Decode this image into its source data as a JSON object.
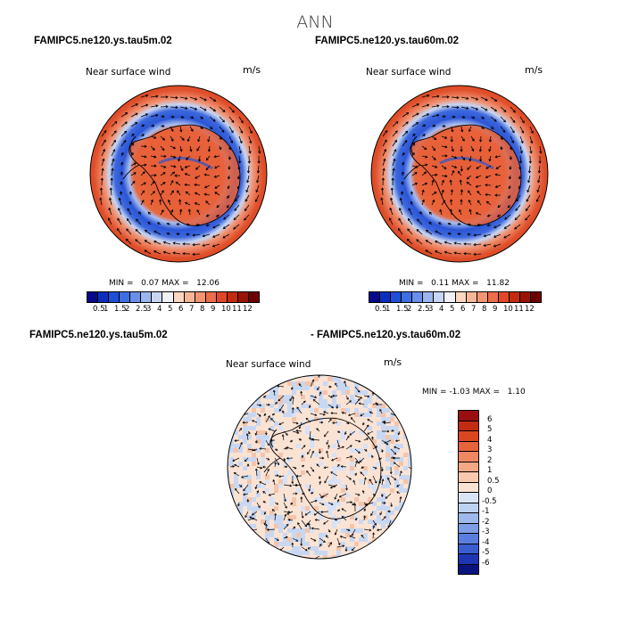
{
  "figure": {
    "title": "ANN"
  },
  "panels": [
    {
      "title": "FAMIPC5.ne120.ys.tau5m.02",
      "field": "Near surface wind",
      "units": "m/s",
      "min_label": "MIN =",
      "min": "0.07",
      "max_label": "MAX =",
      "max": "12.06"
    },
    {
      "title": "FAMIPC5.ne120.ys.tau60m.02",
      "field": "Near surface wind",
      "units": "m/s",
      "min_label": "MIN =",
      "min": "0.11",
      "max_label": "MAX =",
      "max": "11.82"
    },
    {
      "title": "FAMIPC5.ne120.ys.tau5m.02",
      "title2": "- FAMIPC5.ne120.ys.tau60m.02",
      "field": "Near surface wind",
      "units": "m/s",
      "min_label": "MIN =",
      "min": "-1.03",
      "max_label": "MAX =",
      "max": "1.10"
    }
  ],
  "colorbar_abs": {
    "labels": [
      "0.5",
      "1",
      "1.5",
      "2",
      "2.5",
      "3",
      "4",
      "5",
      "6",
      "7",
      "8",
      "9",
      "10",
      "11",
      "12"
    ],
    "colors": [
      "#08088a",
      "#0b2fbd",
      "#1f4fd8",
      "#3d6ee3",
      "#6a8fe8",
      "#9bb5ee",
      "#c8d6f3",
      "#f1f1f5",
      "#fbd7c0",
      "#f8b699",
      "#f39473",
      "#ed6d4b",
      "#e34826",
      "#c42a10",
      "#9a1405",
      "#6e0000"
    ]
  },
  "colorbar_diff": {
    "labels": [
      "6",
      "5",
      "4",
      "3",
      "2",
      "1",
      "0.5",
      "0",
      "-0.5",
      "-1",
      "-2",
      "-3",
      "-4",
      "-5",
      "-6"
    ],
    "colors": [
      "#990f0f",
      "#c32b12",
      "#d94721",
      "#e5643c",
      "#ee8762",
      "#f4a986",
      "#f8c9ad",
      "#fbe3d4",
      "#d9e5f6",
      "#bdd2f0",
      "#9fb9eb",
      "#7d9ee5",
      "#5a7ede",
      "#3a5ccf",
      "#1e36b3",
      "#0a1480"
    ]
  },
  "colors": {
    "blue_ring": "#2b55d6",
    "red_ring": "#e0502b",
    "pale_blue": "#bcd0f2",
    "pale_red": "#f7d2c0"
  }
}
